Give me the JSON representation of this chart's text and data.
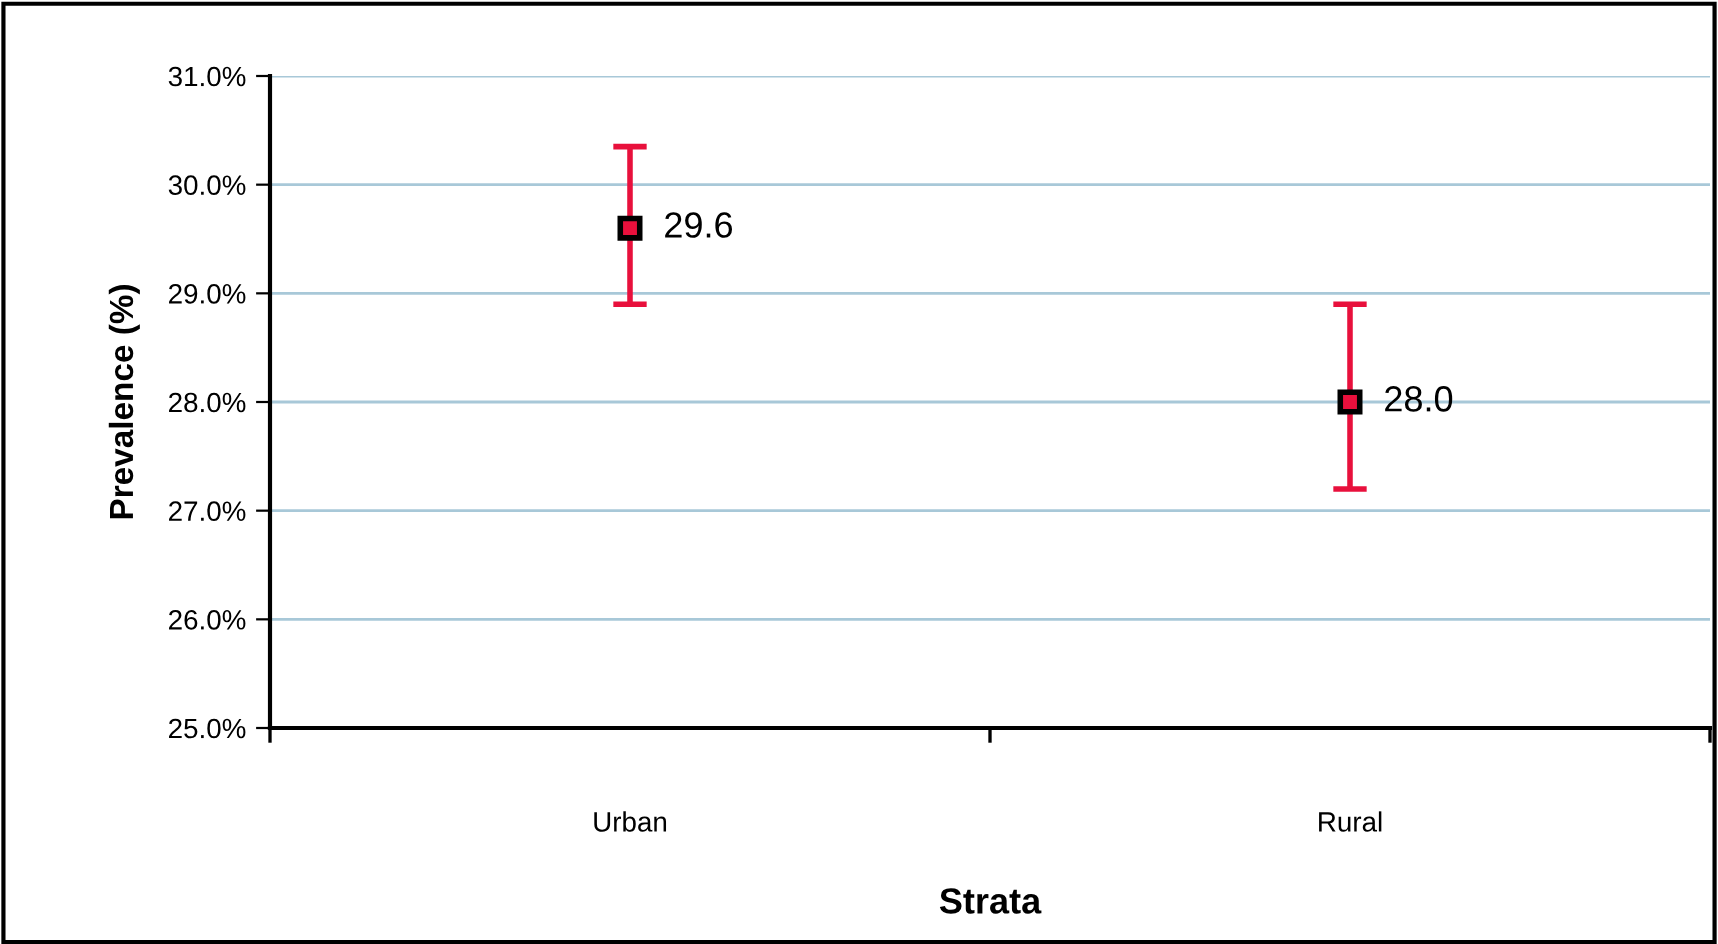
{
  "chart_data": {
    "type": "scatter",
    "xlabel": "Strata",
    "ylabel": "Prevalence (%)",
    "categories": [
      "Urban",
      "Rural"
    ],
    "series": [
      {
        "color": "#e8103c",
        "values": [
          29.6,
          28.0
        ],
        "value_labels": [
          "29.6",
          "28.0"
        ],
        "errors": [
          [
            28.9,
            30.35
          ],
          [
            27.2,
            28.9
          ]
        ]
      }
    ],
    "ylim": [
      25,
      31
    ],
    "yticks": [
      {
        "value": 25,
        "label": "25.0%"
      },
      {
        "value": 26,
        "label": "26.0%"
      },
      {
        "value": 27,
        "label": "27.0%"
      },
      {
        "value": 28,
        "label": "28.0%"
      },
      {
        "value": 29,
        "label": "29.0%"
      },
      {
        "value": 30,
        "label": "30.0%"
      },
      {
        "value": 31,
        "label": "31.0%"
      }
    ],
    "grid": "y",
    "marker": "square"
  }
}
